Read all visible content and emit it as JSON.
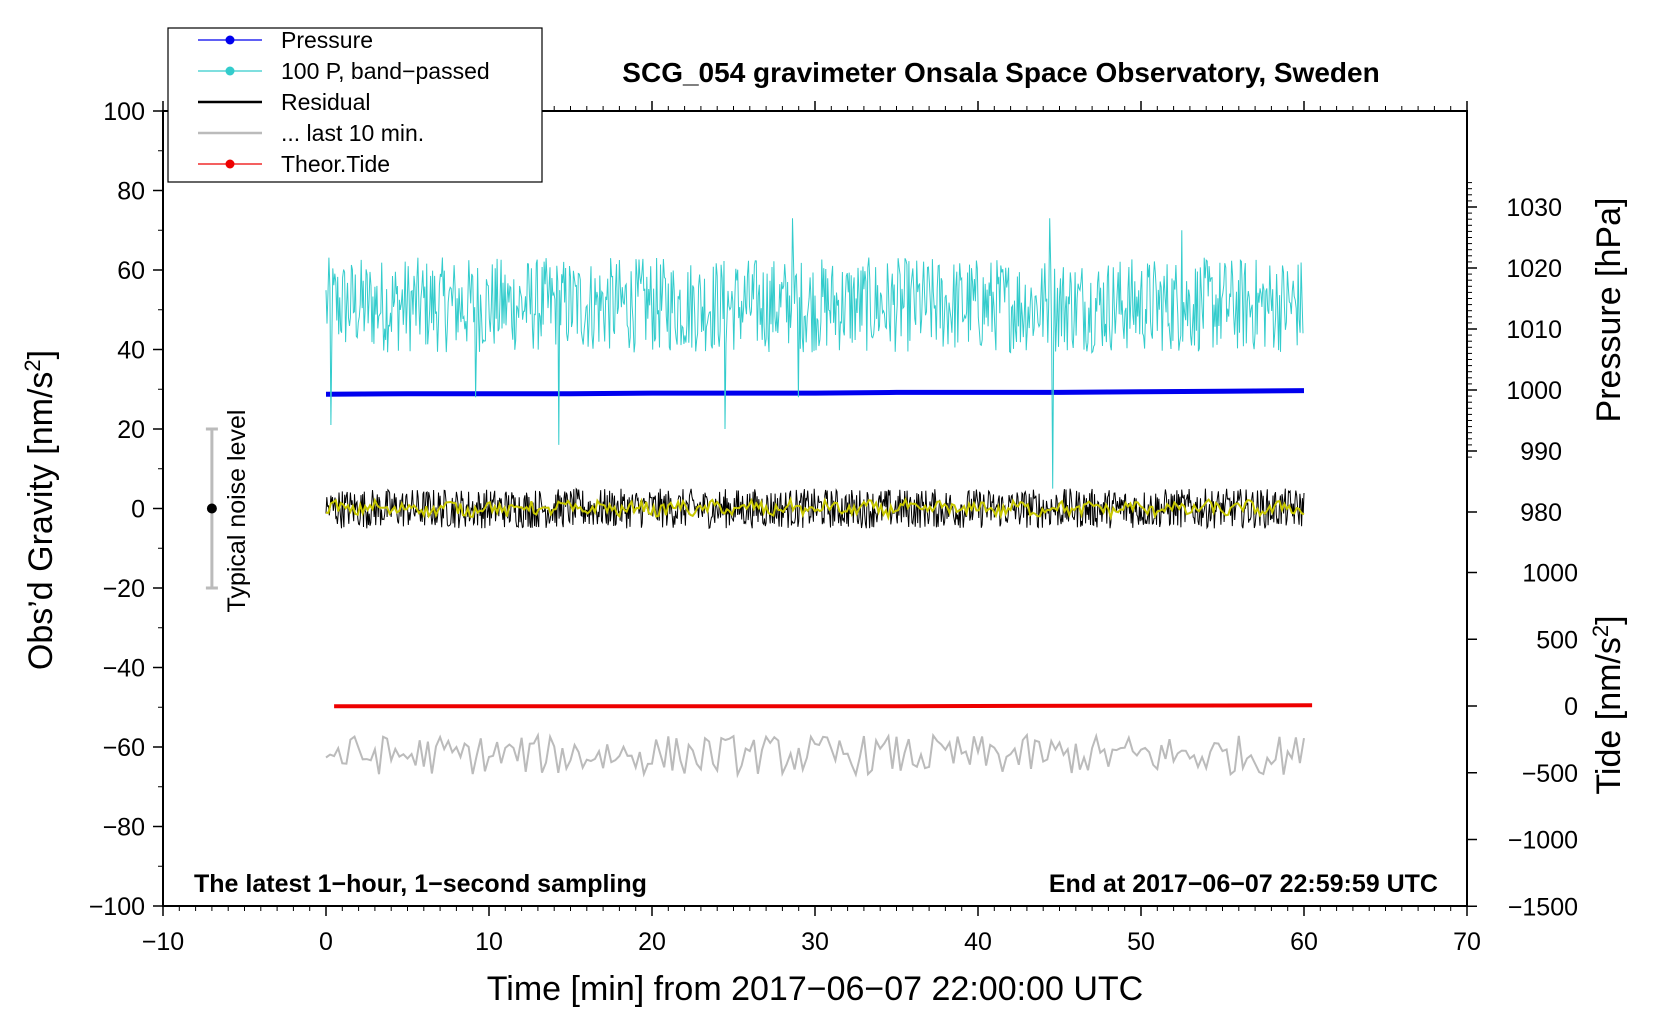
{
  "chart_data": {
    "type": "line",
    "title": "SCG_054 gravimeter Onsala Space Observatory, Sweden",
    "xlabel": "Time [min] from 2017−06−07 22:00:00 UTC",
    "ylabel_left_main": "Obs’d Gravity [nm/s",
    "ylabel_left_sup": "2",
    "ylabel_left_end": "]",
    "ylabel_right_pressure": "Pressure [hPa]",
    "ylabel_right_tide_main": "Tide [nm/s",
    "ylabel_right_tide_sup": "2",
    "ylabel_right_tide_end": "]",
    "xlim": [
      -10,
      70
    ],
    "ylim_left": [
      -100,
      100
    ],
    "pressure_axis_range": [
      975,
      1030
    ],
    "tide_axis_range": [
      -1500,
      1000
    ],
    "x_ticks": [
      "−10",
      "0",
      "10",
      "20",
      "30",
      "40",
      "50",
      "60",
      "70"
    ],
    "x_tick_values": [
      -10,
      0,
      10,
      20,
      30,
      40,
      50,
      60,
      70
    ],
    "y_left_ticks": [
      "100",
      "80",
      "60",
      "40",
      "20",
      "0",
      "−20",
      "−40",
      "−60",
      "−80",
      "−100"
    ],
    "y_left_tick_values": [
      100,
      80,
      60,
      40,
      20,
      0,
      -20,
      -40,
      -60,
      -80,
      -100
    ],
    "pressure_ticks": [
      "1030",
      "1020",
      "1010",
      "1000",
      "990",
      "980"
    ],
    "pressure_tick_values": [
      1030,
      1020,
      1010,
      1000,
      990,
      980
    ],
    "tide_ticks": [
      "1000",
      "500",
      "0",
      "−500",
      "−1000",
      "−1500"
    ],
    "tide_tick_values": [
      1000,
      500,
      0,
      -500,
      -1000,
      -1500
    ],
    "annotation_left": "The latest 1−hour, 1−second sampling",
    "annotation_right": "End at 2017−06−07 22:59:59 UTC",
    "noise_label": "Typical noise level",
    "noise_bar": {
      "x": -7,
      "center": 0,
      "low": -20,
      "high": 20
    },
    "legend": [
      {
        "label": "Pressure",
        "color": "#0000ee",
        "marker": true
      },
      {
        "label": "100 P, band−passed",
        "color": "#33cccc",
        "marker": true
      },
      {
        "label": "Residual",
        "color": "#000000",
        "marker": false
      },
      {
        "label": "... last 10 min.",
        "color": "#bbbbbb",
        "marker": false
      },
      {
        "label": "Theor.Tide",
        "color": "#ee0000",
        "marker": true
      }
    ],
    "series": [
      {
        "name": "Pressure",
        "axis": "pressure_hPa",
        "color": "#0000ee",
        "x": [
          0,
          5,
          10,
          15,
          20,
          25,
          30,
          35,
          40,
          45,
          50,
          55,
          60
        ],
        "values": [
          999.3,
          999.4,
          999.4,
          999.4,
          999.5,
          999.5,
          999.5,
          999.6,
          999.6,
          999.6,
          999.7,
          999.8,
          999.9
        ]
      },
      {
        "name": "100 P, band-passed",
        "axis": "gravity",
        "color": "#33cccc",
        "x": [
          0,
          60
        ],
        "baseline": 50,
        "spread": 12,
        "spikes": [
          [
            0.3,
            21
          ],
          [
            9.2,
            28
          ],
          [
            14.3,
            16
          ],
          [
            24.5,
            20
          ],
          [
            28.6,
            73
          ],
          [
            29.0,
            28
          ],
          [
            44.4,
            73
          ],
          [
            44.6,
            5
          ],
          [
            52.5,
            70
          ]
        ]
      },
      {
        "name": "Residual",
        "axis": "gravity",
        "color": "#000000",
        "x": [
          0,
          60
        ],
        "baseline": 0,
        "spread": 5
      },
      {
        "name": "Residual (smoothed)",
        "axis": "gravity",
        "color": "#c8c800",
        "x": [
          0,
          60
        ],
        "baseline": 0,
        "spread": 1.5
      },
      {
        "name": "... last 10 min.",
        "axis": "gravity",
        "color": "#bbbbbb",
        "x": [
          0,
          60
        ],
        "baseline": -62,
        "spread": 5
      },
      {
        "name": "Theor.Tide",
        "axis": "tide_nm_s2",
        "color": "#ee0000",
        "x": [
          0.5,
          35,
          46.5,
          55,
          60.5
        ],
        "values": [
          -2,
          -2,
          2,
          4,
          6
        ]
      }
    ]
  }
}
